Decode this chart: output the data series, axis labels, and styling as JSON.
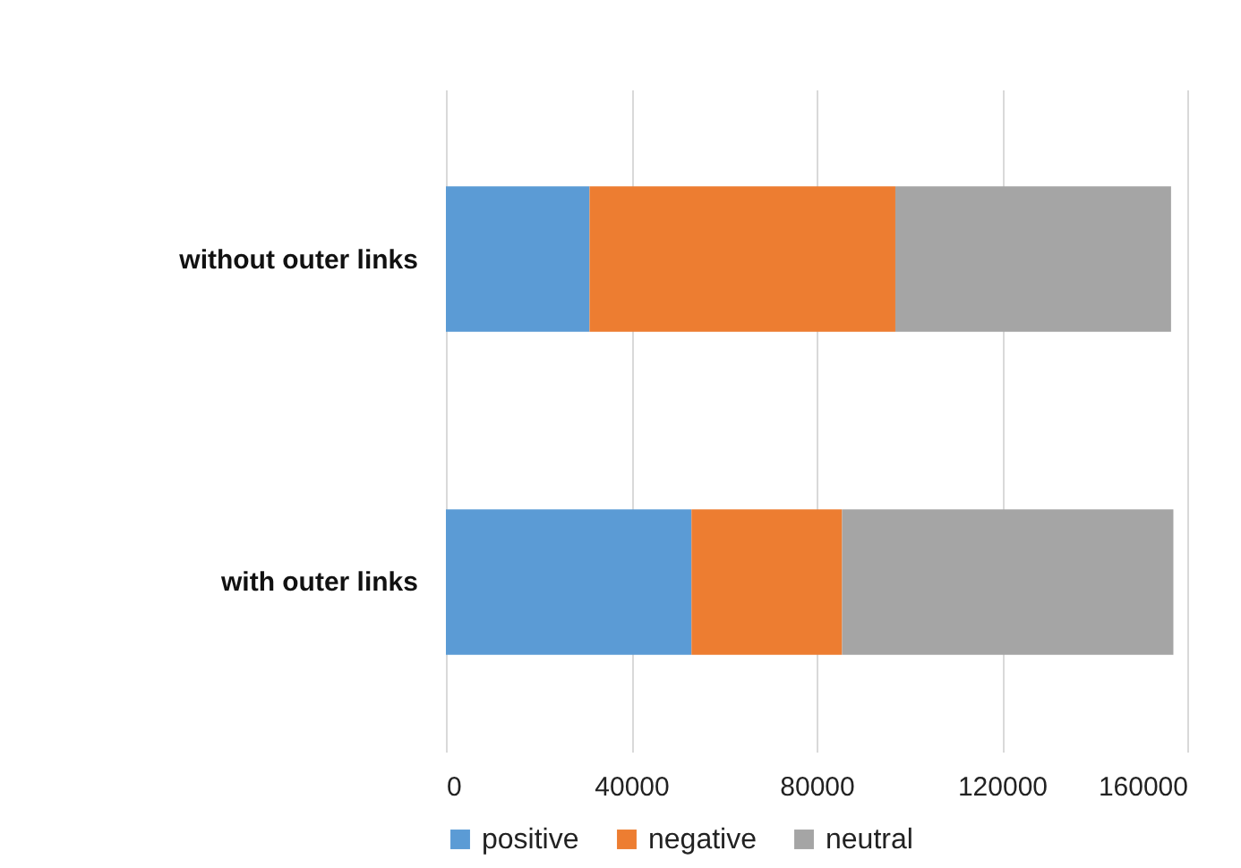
{
  "chart_data": {
    "type": "bar",
    "orientation": "horizontal",
    "stacked": true,
    "categories": [
      "without outer links",
      "with outer links"
    ],
    "series": [
      {
        "name": "positive",
        "color": "#5b9bd5",
        "values": [
          31000,
          53000
        ]
      },
      {
        "name": "negative",
        "color": "#ed7d31",
        "values": [
          66000,
          32500
        ]
      },
      {
        "name": "neutral",
        "color": "#a5a5a5",
        "values": [
          59500,
          71500
        ]
      }
    ],
    "xlim": [
      0,
      160000
    ],
    "xticks": [
      0,
      40000,
      80000,
      120000,
      160000
    ],
    "grid": "x",
    "legend": "bottom"
  }
}
